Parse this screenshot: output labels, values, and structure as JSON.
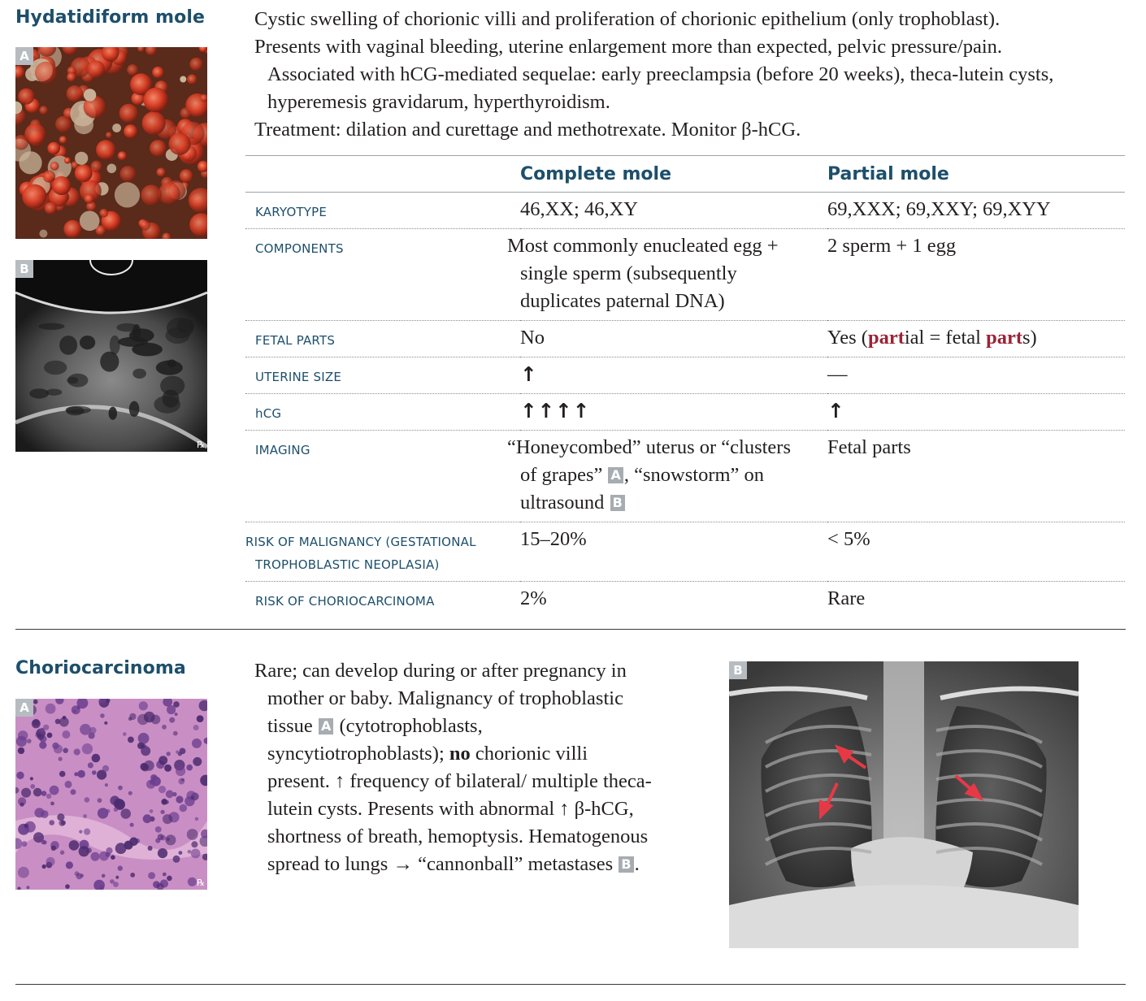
{
  "mole": {
    "heading": "Hydatidiform mole",
    "image_a_letter": "A",
    "image_b_letter": "B",
    "rx_mark": "℞",
    "intro": {
      "line1": "Cystic swelling of chorionic villi and proliferation of chorionic epithelium (only trophoblast).",
      "line2": "Presents with vaginal bleeding, uterine enlargement more than expected, pelvic pressure/pain.",
      "line3": "Associated with hCG-mediated sequelae: early preeclampsia (before 20 weeks), theca-lutein cysts, hyperemesis gravidarum, hyperthyroidism.",
      "line4": "Treatment: dilation and curettage and methotrexate. Monitor β-hCG."
    },
    "table": {
      "col_complete": "Complete mole",
      "col_partial": "Partial mole",
      "karyotype": {
        "label": "Karyotype",
        "complete": "46,XX; 46,XY",
        "partial": "69,XXX; 69,XXY; 69,XYY"
      },
      "components": {
        "label": "Components",
        "complete": "Most commonly enucleated egg + single sperm (subsequently duplicates paternal DNA)",
        "partial": "2 sperm + 1 egg"
      },
      "fetal_parts": {
        "label": "Fetal parts",
        "complete": "No",
        "partial_1": "Yes (",
        "partial_2": "part",
        "partial_3": "ial = fetal ",
        "partial_4": "part",
        "partial_5": "s)"
      },
      "uterine_size": {
        "label": "Uterine size",
        "complete": "↑",
        "partial": "—"
      },
      "hcg": {
        "label": "hCG",
        "complete": "↑↑↑↑",
        "partial": "↑"
      },
      "imaging": {
        "label": "Imaging",
        "complete_1": "“Honeycombed” uterus or “clusters of grapes”",
        "badge_a": "A",
        "complete_2": ", “snowstorm” on ultrasound",
        "badge_b": "B",
        "partial": "Fetal parts"
      },
      "malignancy": {
        "label": "Risk of malignancy (gestational trophoblastic neoplasia)",
        "complete": "15–20%",
        "partial": "< 5%"
      },
      "choriocarcinoma": {
        "label": "Risk of choriocarcinoma",
        "complete": "2%",
        "partial": "Rare"
      }
    }
  },
  "chorio": {
    "heading": "Choriocarcinoma",
    "image_a_letter": "A",
    "image_b_letter": "B",
    "rx_mark": "℞",
    "text_1": "Rare; can develop during or after pregnancy in mother or baby. Malignancy of trophoblastic tissue",
    "badge_a": "A",
    "text_2": " (cytotrophoblasts, syncytiotrophoblasts); ",
    "text_bold": "no",
    "text_3": " chorionic villi present. ↑ frequency of bilateral/ multiple theca-lutein cysts. Presents with abnormal ↑ β-hCG, shortness of breath, hemoptysis. Hematogenous spread to lungs → “cannonball” metastases",
    "badge_b": "B",
    "text_4": "."
  },
  "colors": {
    "heading": "#1d4f6b",
    "highlight": "#9b2335",
    "badge": "#a7acb0"
  }
}
